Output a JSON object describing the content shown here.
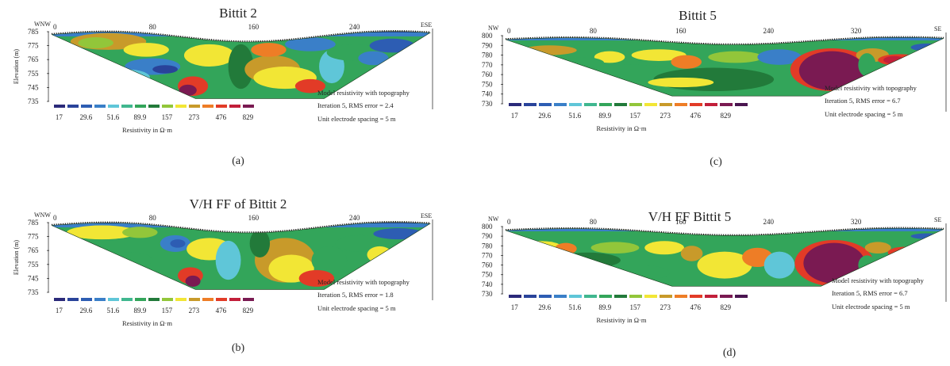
{
  "palette": [
    "#2b2a7a",
    "#29439a",
    "#2d5db3",
    "#3a7fc8",
    "#5fc6d8",
    "#40b78f",
    "#33a55a",
    "#227a3a",
    "#92c63a",
    "#f2e635",
    "#c89a2a",
    "#ee7d26",
    "#e23b27",
    "#c21f3a",
    "#7a1a52",
    "#4a1550"
  ],
  "legend_values": [
    "17",
    "29.6",
    "51.6",
    "89.9",
    "157",
    "273",
    "476",
    "829"
  ],
  "legend_label": "Resistivity in Ω·m",
  "yaxis_label": "Elevation (m)",
  "notes": {
    "model": "Model resistivity with topography",
    "spacing": "Unit electrode spacing = 5 m"
  },
  "chart_data": [
    {
      "id": "a",
      "type": "heatmap",
      "title": "Bittit 2",
      "caption": "(a)",
      "dir_left": "WNW",
      "dir_right": "ESE",
      "x_ticks": [
        "0",
        "80",
        "160",
        "240"
      ],
      "xlim": [
        0,
        300
      ],
      "y_ticks": [
        785,
        775,
        765,
        755,
        745,
        735
      ],
      "ylim": [
        735,
        785
      ],
      "iteration": "Iteration 5, RMS error = 2.4",
      "legend_count": 15,
      "blobs": [
        {
          "x": 45,
          "y": 778,
          "rx": 30,
          "ry": 6,
          "c": 10
        },
        {
          "x": 35,
          "y": 777,
          "rx": 14,
          "ry": 4,
          "c": 8
        },
        {
          "x": 75,
          "y": 772,
          "rx": 18,
          "ry": 5,
          "c": 9
        },
        {
          "x": 80,
          "y": 760,
          "rx": 22,
          "ry": 6,
          "c": 3
        },
        {
          "x": 90,
          "y": 758,
          "rx": 10,
          "ry": 3,
          "c": 1
        },
        {
          "x": 60,
          "y": 752,
          "rx": 18,
          "ry": 6,
          "c": 4
        },
        {
          "x": 112,
          "y": 746,
          "rx": 12,
          "ry": 7,
          "c": 12
        },
        {
          "x": 108,
          "y": 743,
          "rx": 7,
          "ry": 4,
          "c": 14
        },
        {
          "x": 125,
          "y": 768,
          "rx": 20,
          "ry": 8,
          "c": 9
        },
        {
          "x": 150,
          "y": 760,
          "rx": 10,
          "ry": 16,
          "c": 7
        },
        {
          "x": 175,
          "y": 758,
          "rx": 22,
          "ry": 10,
          "c": 10
        },
        {
          "x": 185,
          "y": 752,
          "rx": 25,
          "ry": 8,
          "c": 9
        },
        {
          "x": 172,
          "y": 772,
          "rx": 14,
          "ry": 5,
          "c": 11
        },
        {
          "x": 205,
          "y": 776,
          "rx": 20,
          "ry": 5,
          "c": 3
        },
        {
          "x": 222,
          "y": 760,
          "rx": 10,
          "ry": 12,
          "c": 4
        },
        {
          "x": 240,
          "y": 770,
          "rx": 22,
          "ry": 6,
          "c": 6
        },
        {
          "x": 255,
          "y": 766,
          "rx": 12,
          "ry": 5,
          "c": 3
        },
        {
          "x": 270,
          "y": 775,
          "rx": 18,
          "ry": 5,
          "c": 2
        },
        {
          "x": 205,
          "y": 746,
          "rx": 12,
          "ry": 5,
          "c": 12
        }
      ]
    },
    {
      "id": "c",
      "type": "heatmap",
      "title": "Bittit 5",
      "caption": "(c)",
      "dir_left": "NW",
      "dir_right": "SE",
      "x_ticks": [
        "0",
        "80",
        "160",
        "240",
        "320"
      ],
      "xlim": [
        0,
        400
      ],
      "y_ticks": [
        800,
        790,
        780,
        770,
        760,
        750,
        740,
        730
      ],
      "ylim": [
        730,
        800
      ],
      "iteration": "Iteration 5, RMS error = 6.7",
      "legend_count": 16,
      "blobs": [
        {
          "x": 40,
          "y": 785,
          "rx": 25,
          "ry": 5,
          "c": 10
        },
        {
          "x": 95,
          "y": 778,
          "rx": 14,
          "ry": 6,
          "c": 9
        },
        {
          "x": 70,
          "y": 772,
          "rx": 20,
          "ry": 6,
          "c": 6
        },
        {
          "x": 140,
          "y": 780,
          "rx": 25,
          "ry": 6,
          "c": 9
        },
        {
          "x": 165,
          "y": 773,
          "rx": 14,
          "ry": 7,
          "c": 11
        },
        {
          "x": 115,
          "y": 762,
          "rx": 40,
          "ry": 8,
          "c": 6
        },
        {
          "x": 190,
          "y": 755,
          "rx": 55,
          "ry": 12,
          "c": 7
        },
        {
          "x": 210,
          "y": 778,
          "rx": 25,
          "ry": 6,
          "c": 8
        },
        {
          "x": 160,
          "y": 752,
          "rx": 30,
          "ry": 5,
          "c": 9
        },
        {
          "x": 250,
          "y": 778,
          "rx": 20,
          "ry": 8,
          "c": 3
        },
        {
          "x": 298,
          "y": 765,
          "rx": 38,
          "ry": 22,
          "c": 12
        },
        {
          "x": 298,
          "y": 764,
          "rx": 30,
          "ry": 20,
          "c": 14
        },
        {
          "x": 335,
          "y": 780,
          "rx": 15,
          "ry": 7,
          "c": 10
        },
        {
          "x": 360,
          "y": 775,
          "rx": 20,
          "ry": 6,
          "c": 12
        },
        {
          "x": 355,
          "y": 775,
          "rx": 10,
          "ry": 4,
          "c": 13
        },
        {
          "x": 385,
          "y": 788,
          "rx": 15,
          "ry": 4,
          "c": 2
        },
        {
          "x": 330,
          "y": 770,
          "rx": 8,
          "ry": 12,
          "c": 6
        }
      ]
    },
    {
      "id": "b",
      "type": "heatmap",
      "title": "V/H FF of Bittit 2",
      "caption": "(b)",
      "dir_left": "WNW",
      "dir_right": "ESE",
      "x_ticks": [
        "0",
        "80",
        "160",
        "240"
      ],
      "xlim": [
        0,
        300
      ],
      "y_ticks": [
        785,
        775,
        765,
        755,
        745,
        735
      ],
      "ylim": [
        735,
        785
      ],
      "iteration": "Iteration 5, RMS error = 1.8",
      "legend_count": 15,
      "blobs": [
        {
          "x": 40,
          "y": 778,
          "rx": 28,
          "ry": 5,
          "c": 9
        },
        {
          "x": 70,
          "y": 778,
          "rx": 14,
          "ry": 4,
          "c": 8
        },
        {
          "x": 98,
          "y": 770,
          "rx": 12,
          "ry": 6,
          "c": 3
        },
        {
          "x": 100,
          "y": 770,
          "rx": 6,
          "ry": 3,
          "c": 2
        },
        {
          "x": 125,
          "y": 766,
          "rx": 18,
          "ry": 8,
          "c": 9
        },
        {
          "x": 60,
          "y": 758,
          "rx": 20,
          "ry": 6,
          "c": 6
        },
        {
          "x": 110,
          "y": 747,
          "rx": 10,
          "ry": 6,
          "c": 12
        },
        {
          "x": 112,
          "y": 743,
          "rx": 6,
          "ry": 4,
          "c": 14
        },
        {
          "x": 140,
          "y": 758,
          "rx": 10,
          "ry": 14,
          "c": 4
        },
        {
          "x": 185,
          "y": 758,
          "rx": 24,
          "ry": 16,
          "c": 10
        },
        {
          "x": 190,
          "y": 752,
          "rx": 18,
          "ry": 10,
          "c": 9
        },
        {
          "x": 165,
          "y": 770,
          "rx": 8,
          "ry": 10,
          "c": 7
        },
        {
          "x": 220,
          "y": 758,
          "rx": 14,
          "ry": 10,
          "c": 6
        },
        {
          "x": 245,
          "y": 770,
          "rx": 20,
          "ry": 6,
          "c": 6
        },
        {
          "x": 260,
          "y": 762,
          "rx": 10,
          "ry": 6,
          "c": 9
        },
        {
          "x": 275,
          "y": 777,
          "rx": 20,
          "ry": 4,
          "c": 2
        },
        {
          "x": 210,
          "y": 745,
          "rx": 14,
          "ry": 6,
          "c": 12
        }
      ]
    },
    {
      "id": "d",
      "type": "heatmap",
      "title": "V/H FF Bittit 5",
      "caption": "(d)",
      "dir_left": "NW",
      "dir_right": "SE",
      "x_ticks": [
        "0",
        "80",
        "160",
        "240",
        "320"
      ],
      "xlim": [
        0,
        400
      ],
      "y_ticks": [
        800,
        790,
        780,
        770,
        760,
        750,
        740,
        730
      ],
      "ylim": [
        730,
        800
      ],
      "iteration": "Iteration 5, RMS error = 6.7",
      "legend_count": 16,
      "blobs": [
        {
          "x": 30,
          "y": 780,
          "rx": 20,
          "ry": 5,
          "c": 9
        },
        {
          "x": 55,
          "y": 777,
          "rx": 10,
          "ry": 6,
          "c": 11
        },
        {
          "x": 100,
          "y": 778,
          "rx": 22,
          "ry": 6,
          "c": 8
        },
        {
          "x": 75,
          "y": 765,
          "rx": 30,
          "ry": 8,
          "c": 7
        },
        {
          "x": 145,
          "y": 778,
          "rx": 18,
          "ry": 7,
          "c": 9
        },
        {
          "x": 170,
          "y": 772,
          "rx": 10,
          "ry": 8,
          "c": 10
        },
        {
          "x": 120,
          "y": 752,
          "rx": 30,
          "ry": 8,
          "c": 6
        },
        {
          "x": 200,
          "y": 760,
          "rx": 25,
          "ry": 14,
          "c": 9
        },
        {
          "x": 230,
          "y": 768,
          "rx": 14,
          "ry": 10,
          "c": 11
        },
        {
          "x": 250,
          "y": 760,
          "rx": 14,
          "ry": 14,
          "c": 4
        },
        {
          "x": 300,
          "y": 762,
          "rx": 36,
          "ry": 24,
          "c": 12
        },
        {
          "x": 300,
          "y": 762,
          "rx": 28,
          "ry": 21,
          "c": 14
        },
        {
          "x": 340,
          "y": 778,
          "rx": 12,
          "ry": 6,
          "c": 10
        },
        {
          "x": 365,
          "y": 773,
          "rx": 16,
          "ry": 6,
          "c": 12
        },
        {
          "x": 365,
          "y": 773,
          "rx": 8,
          "ry": 3,
          "c": 13
        },
        {
          "x": 385,
          "y": 790,
          "rx": 15,
          "ry": 3,
          "c": 2
        },
        {
          "x": 330,
          "y": 760,
          "rx": 8,
          "ry": 10,
          "c": 6
        }
      ]
    }
  ]
}
